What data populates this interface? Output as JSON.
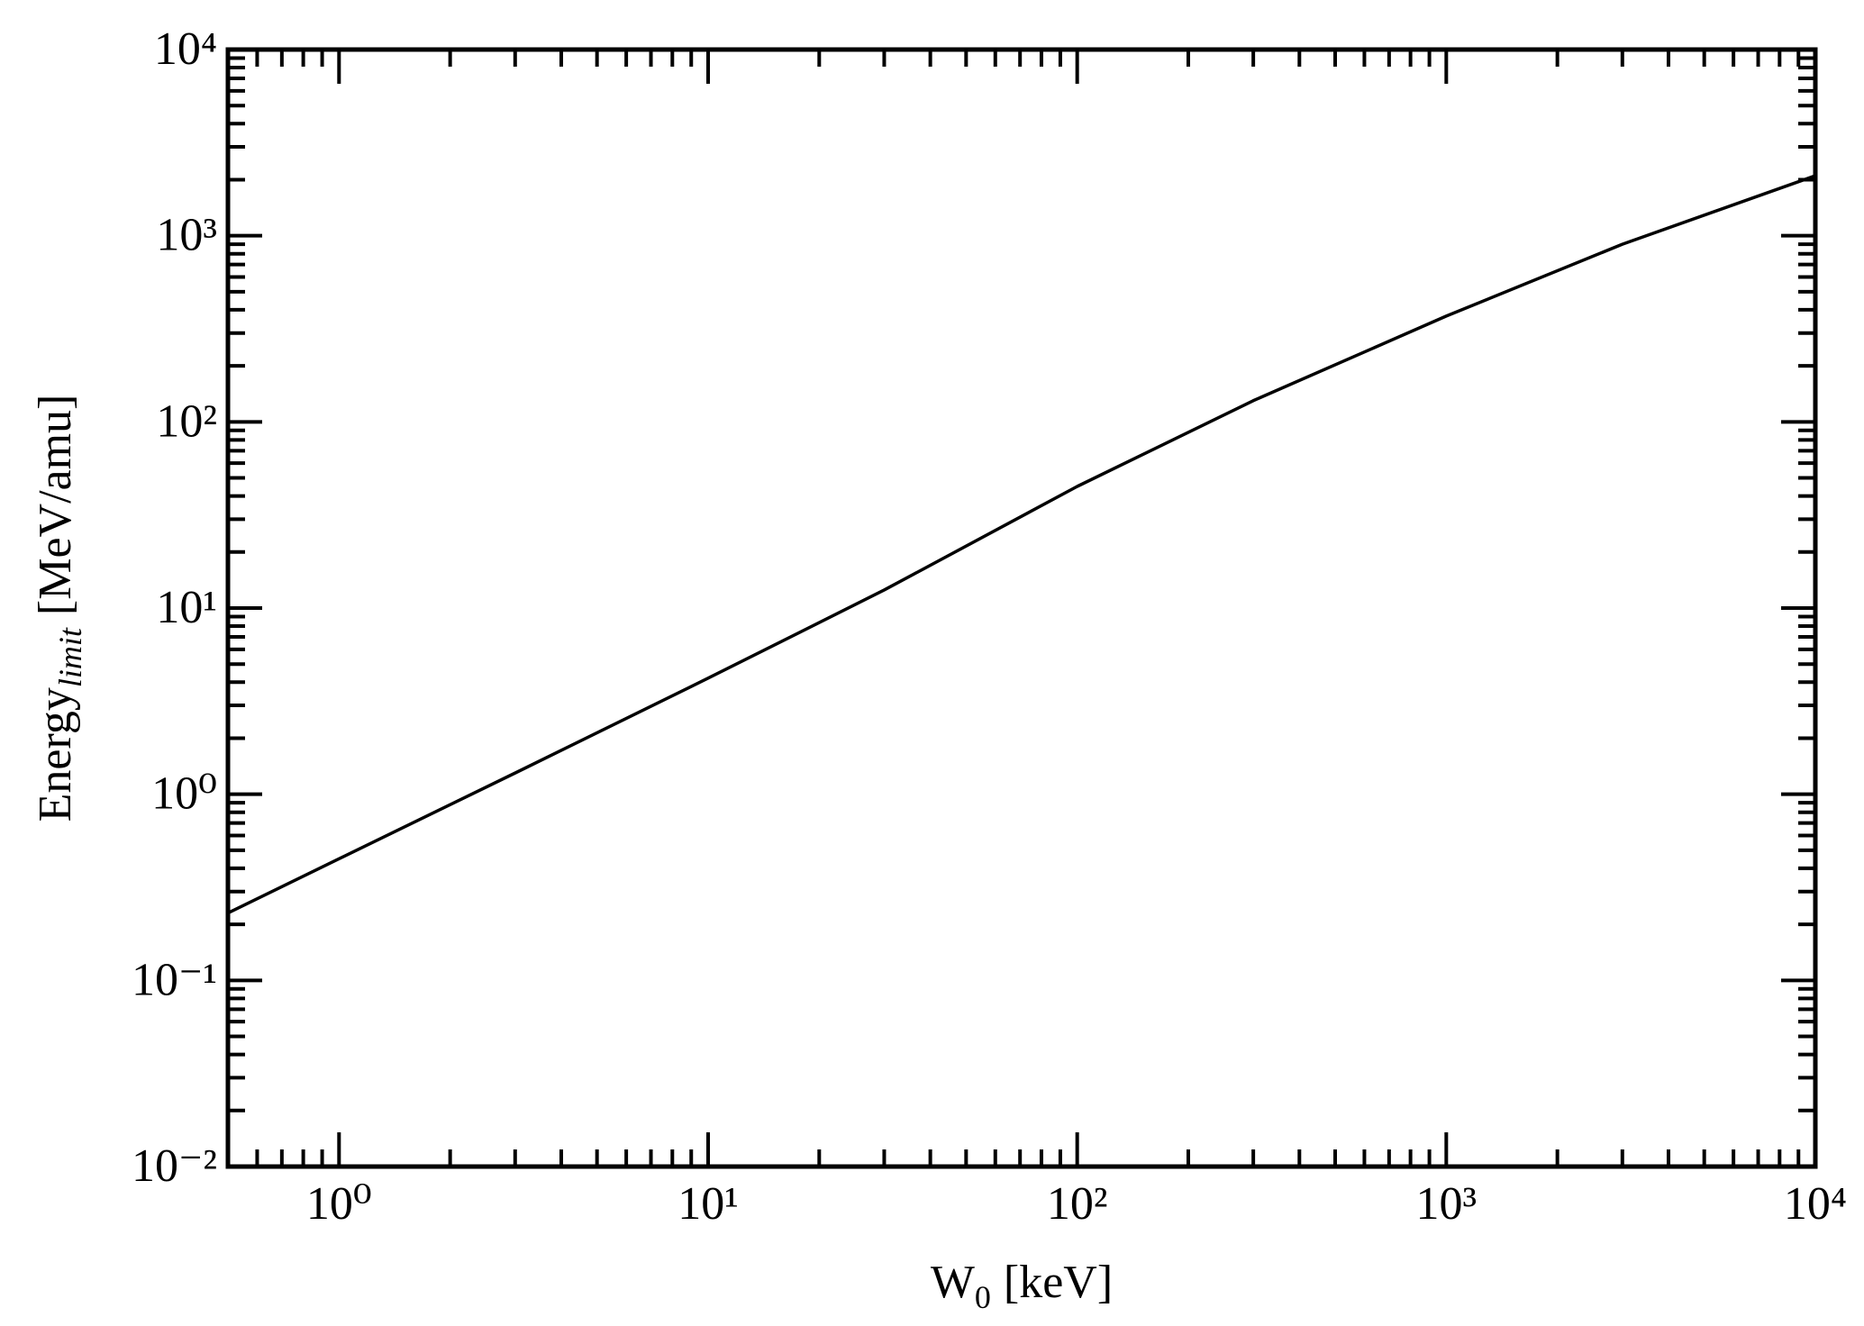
{
  "chart_data": {
    "type": "line",
    "xlabel": {
      "text": "W",
      "subscript": "0",
      "unit": "[keV]"
    },
    "ylabel": {
      "text": "Energy",
      "subscript": "limit",
      "unit": "[MeV/amu]"
    },
    "x": [
      0.5,
      1,
      3,
      10,
      30,
      100,
      300,
      1000,
      3000,
      10000
    ],
    "series": [
      {
        "color": "#000000",
        "values": [
          0.23,
          0.45,
          1.3,
          4.2,
          12.5,
          45,
          130,
          370,
          900,
          2100
        ]
      }
    ],
    "xscale": "log",
    "yscale": "log",
    "xlim": [
      0.5,
      10000
    ],
    "ylim": [
      0.01,
      10000
    ],
    "xticks": [
      {
        "value": 1,
        "label": "10⁰"
      },
      {
        "value": 10,
        "label": "10¹"
      },
      {
        "value": 100,
        "label": "10²"
      },
      {
        "value": 1000,
        "label": "10³"
      },
      {
        "value": 10000,
        "label": "10⁴"
      }
    ],
    "yticks": [
      {
        "value": 0.01,
        "label": "10⁻²"
      },
      {
        "value": 0.1,
        "label": "10⁻¹"
      },
      {
        "value": 1,
        "label": "10⁰"
      },
      {
        "value": 10,
        "label": "10¹"
      },
      {
        "value": 100,
        "label": "10²"
      },
      {
        "value": 1000,
        "label": "10³"
      },
      {
        "value": 10000,
        "label": "10⁴"
      }
    ],
    "grid": false
  }
}
